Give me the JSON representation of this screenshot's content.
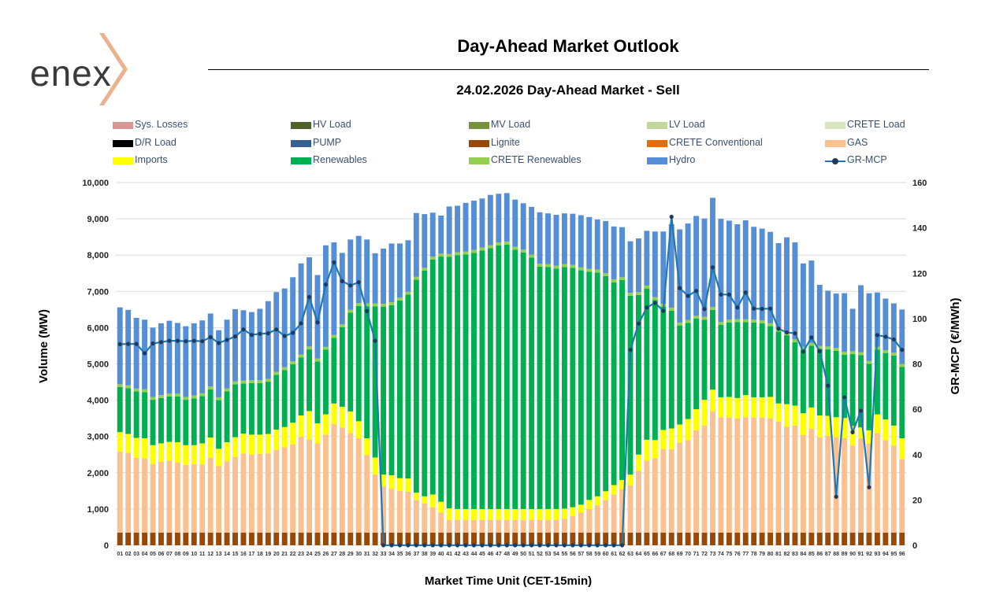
{
  "brand": {
    "name": "enex"
  },
  "header": {
    "page_title": "Day-Ahead Market Outlook",
    "chart_title": "24.02.2026  Day-Ahead Market - Sell"
  },
  "legend": [
    {
      "label": "Sys. Losses",
      "color": "#d99694",
      "kind": "bar"
    },
    {
      "label": "HV Load",
      "color": "#4f6228",
      "kind": "bar"
    },
    {
      "label": "MV Load",
      "color": "#77933c",
      "kind": "bar"
    },
    {
      "label": "LV Load",
      "color": "#c3d69b",
      "kind": "bar"
    },
    {
      "label": "CRETE Load",
      "color": "#d7e4bd",
      "kind": "bar"
    },
    {
      "label": "D/R Load",
      "color": "#000000",
      "kind": "bar"
    },
    {
      "label": "PUMP",
      "color": "#366092",
      "kind": "bar"
    },
    {
      "label": "Lignite",
      "color": "#984807",
      "kind": "bar"
    },
    {
      "label": "CRETE Conventional",
      "color": "#e46c0a",
      "kind": "bar"
    },
    {
      "label": "GAS",
      "color": "#fac090",
      "kind": "bar"
    },
    {
      "label": "Imports",
      "color": "#ffff00",
      "kind": "bar"
    },
    {
      "label": "Renewables",
      "color": "#00b050",
      "kind": "bar"
    },
    {
      "label": "CRETE Renewables",
      "color": "#92d050",
      "kind": "bar"
    },
    {
      "label": "Hydro",
      "color": "#558ed5",
      "kind": "bar"
    },
    {
      "label": "GR-MCP",
      "color": "#1f77b4",
      "kind": "line"
    }
  ],
  "chart_data": {
    "type": "bar",
    "stacked": true,
    "title": "24.02.2026  Day-Ahead Market - Sell",
    "xlabel": "Market Time Unit (CET-15min)",
    "ylabel": "Volume (MW)",
    "y2label": "GR-MCP (€/MWh)",
    "ylim": [
      0,
      10000
    ],
    "y2lim": [
      0,
      160
    ],
    "yticks": [
      "0",
      "1,000",
      "2,000",
      "3,000",
      "4,000",
      "5,000",
      "6,000",
      "7,000",
      "8,000",
      "9,000",
      "10,000"
    ],
    "y2ticks": [
      "0",
      "20",
      "40",
      "60",
      "80",
      "100",
      "120",
      "140",
      "160"
    ],
    "grid": true,
    "categories": [
      "01",
      "02",
      "03",
      "04",
      "05",
      "06",
      "07",
      "08",
      "09",
      "10",
      "11",
      "12",
      "13",
      "14",
      "15",
      "16",
      "17",
      "18",
      "19",
      "20",
      "21",
      "22",
      "23",
      "24",
      "25",
      "26",
      "27",
      "28",
      "29",
      "30",
      "31",
      "32",
      "33",
      "34",
      "35",
      "36",
      "37",
      "38",
      "39",
      "40",
      "41",
      "42",
      "43",
      "44",
      "45",
      "46",
      "47",
      "48",
      "49",
      "50",
      "51",
      "52",
      "53",
      "54",
      "55",
      "56",
      "57",
      "58",
      "59",
      "60",
      "61",
      "62",
      "63",
      "64",
      "65",
      "66",
      "67",
      "68",
      "69",
      "70",
      "71",
      "72",
      "73",
      "74",
      "75",
      "76",
      "77",
      "78",
      "79",
      "80",
      "81",
      "82",
      "83",
      "84",
      "85",
      "86",
      "87",
      "88",
      "89",
      "90",
      "91",
      "92",
      "93",
      "94",
      "95",
      "96"
    ],
    "series": [
      {
        "name": "Lignite",
        "color": "#984807",
        "values": [
          350,
          350,
          350,
          350,
          350,
          350,
          350,
          350,
          350,
          350,
          350,
          350,
          350,
          350,
          350,
          350,
          350,
          350,
          350,
          350,
          350,
          350,
          350,
          350,
          350,
          350,
          350,
          350,
          350,
          350,
          350,
          350,
          350,
          350,
          350,
          350,
          350,
          350,
          350,
          350,
          350,
          350,
          350,
          350,
          350,
          350,
          350,
          350,
          350,
          350,
          350,
          350,
          350,
          350,
          350,
          350,
          350,
          350,
          350,
          350,
          350,
          350,
          350,
          350,
          350,
          350,
          350,
          350,
          350,
          350,
          350,
          350,
          350,
          350,
          350,
          350,
          350,
          350,
          350,
          350,
          350,
          350,
          350,
          350,
          350,
          350,
          350,
          350,
          350,
          350,
          350,
          350,
          350,
          350,
          350,
          350
        ]
      },
      {
        "name": "GAS",
        "color": "#fac090",
        "values": [
          2230,
          2200,
          2060,
          2050,
          1890,
          1950,
          1980,
          1930,
          1870,
          1890,
          1880,
          2060,
          1830,
          1970,
          2080,
          2180,
          2150,
          2170,
          2180,
          2280,
          2350,
          2430,
          2640,
          2570,
          2460,
          2700,
          2990,
          2900,
          2740,
          2600,
          2140,
          1600,
          1270,
          1210,
          1150,
          1130,
          900,
          800,
          700,
          550,
          350,
          350,
          350,
          350,
          350,
          350,
          350,
          350,
          350,
          350,
          350,
          350,
          350,
          350,
          380,
          450,
          550,
          650,
          750,
          900,
          1050,
          1200,
          1300,
          1700,
          1980,
          2050,
          2300,
          2300,
          2480,
          2550,
          2820,
          2950,
          3340,
          3180,
          3170,
          3150,
          3180,
          3170,
          3170,
          3150,
          3060,
          2920,
          2950,
          2690,
          2860,
          2630,
          2670,
          2630,
          2600,
          2400,
          2600,
          2450,
          2740,
          2550,
          2400,
          2030
        ]
      },
      {
        "name": "Imports",
        "color": "#ffff00",
        "values": [
          540,
          520,
          550,
          550,
          520,
          510,
          520,
          560,
          540,
          520,
          580,
          560,
          480,
          520,
          550,
          550,
          550,
          530,
          540,
          560,
          560,
          600,
          590,
          780,
          550,
          560,
          570,
          570,
          600,
          470,
          460,
          470,
          330,
          370,
          350,
          360,
          200,
          200,
          350,
          300,
          320,
          300,
          300,
          300,
          300,
          300,
          300,
          300,
          300,
          300,
          300,
          300,
          300,
          300,
          280,
          250,
          220,
          250,
          250,
          240,
          260,
          250,
          300,
          450,
          580,
          500,
          530,
          570,
          500,
          580,
          580,
          710,
          600,
          550,
          570,
          560,
          610,
          560,
          560,
          590,
          500,
          620,
          550,
          600,
          590,
          600,
          550,
          550,
          560,
          540,
          300,
          370,
          520,
          570,
          550,
          570
        ]
      },
      {
        "name": "Renewables",
        "color": "#00b050",
        "values": [
          1240,
          1260,
          1280,
          1270,
          1250,
          1250,
          1250,
          1260,
          1250,
          1290,
          1300,
          1330,
          1340,
          1400,
          1460,
          1380,
          1420,
          1420,
          1440,
          1510,
          1570,
          1610,
          1600,
          1700,
          1710,
          1780,
          1810,
          2190,
          2720,
          3180,
          3640,
          4170,
          4630,
          4690,
          4900,
          5070,
          5870,
          6220,
          6480,
          6760,
          6930,
          7000,
          7020,
          7060,
          7130,
          7190,
          7270,
          7290,
          7150,
          7070,
          6930,
          6680,
          6670,
          6630,
          6660,
          6600,
          6460,
          6290,
          6170,
          5930,
          5590,
          5510,
          4930,
          4400,
          4170,
          3860,
          3400,
          3250,
          2730,
          2650,
          2500,
          2210,
          2200,
          2000,
          2050,
          2090,
          2010,
          2060,
          2040,
          1950,
          1980,
          1900,
          1750,
          1750,
          1700,
          1840,
          1830,
          1830,
          1740,
          1980,
          1990,
          1830,
          1780,
          1830,
          1930,
          1970
        ]
      },
      {
        "name": "CRETE Renewables",
        "color": "#92d050",
        "values": [
          80,
          80,
          80,
          80,
          80,
          80,
          80,
          80,
          80,
          80,
          80,
          80,
          80,
          80,
          80,
          80,
          80,
          80,
          80,
          80,
          80,
          80,
          80,
          80,
          80,
          80,
          80,
          80,
          80,
          80,
          80,
          80,
          80,
          80,
          80,
          80,
          80,
          80,
          80,
          80,
          80,
          80,
          80,
          80,
          80,
          80,
          80,
          80,
          80,
          80,
          80,
          80,
          80,
          80,
          80,
          80,
          80,
          80,
          80,
          80,
          80,
          80,
          80,
          80,
          80,
          80,
          80,
          80,
          80,
          80,
          80,
          80,
          80,
          80,
          80,
          80,
          80,
          80,
          80,
          80,
          80,
          80,
          80,
          80,
          80,
          80,
          80,
          80,
          80,
          80,
          80,
          80,
          80,
          80,
          80,
          80
        ]
      },
      {
        "name": "Hydro",
        "color": "#558ed5",
        "values": [
          2120,
          2080,
          1950,
          1920,
          1910,
          1980,
          2010,
          1950,
          1950,
          1990,
          2010,
          2010,
          1850,
          1900,
          1990,
          1940,
          1880,
          1970,
          2140,
          2200,
          2170,
          2320,
          2510,
          2460,
          2300,
          2800,
          2550,
          1970,
          1940,
          1850,
          1760,
          1380,
          1520,
          1620,
          1490,
          1420,
          1760,
          1480,
          1210,
          1050,
          1310,
          1280,
          1340,
          1360,
          1350,
          1390,
          1340,
          1340,
          1300,
          1280,
          1320,
          1420,
          1400,
          1400,
          1400,
          1410,
          1440,
          1430,
          1380,
          1440,
          1460,
          1380,
          1420,
          1480,
          1510,
          1810,
          1990,
          2300,
          2570,
          2660,
          2750,
          2710,
          3010,
          2840,
          2730,
          2620,
          2730,
          2560,
          2530,
          2520,
          2360,
          2620,
          2670,
          2300,
          2270,
          1680,
          1540,
          1500,
          1620,
          1170,
          1850,
          1870,
          1500,
          1420,
          1360,
          1500
        ]
      }
    ],
    "line": {
      "name": "GR-MCP",
      "axis": "right",
      "color": "#1f77b4",
      "values": [
        88.7,
        88.8,
        88.8,
        84.7,
        89.0,
        89.6,
        90.2,
        90.2,
        90.0,
        90.2,
        90.0,
        91.8,
        89.2,
        90.6,
        92.1,
        95.2,
        92.8,
        93.3,
        93.5,
        95.2,
        92.3,
        93.7,
        97.9,
        109.5,
        98.3,
        115.0,
        124.8,
        116.5,
        114.6,
        116.0,
        103.3,
        90.2,
        0,
        0,
        0,
        0,
        0,
        0,
        0,
        0,
        0,
        0,
        0,
        0,
        0,
        0,
        0,
        0,
        0,
        0,
        0,
        0,
        0,
        0,
        0,
        0,
        0,
        0,
        0,
        0,
        0,
        0,
        86.2,
        97.8,
        104.9,
        106.9,
        103.4,
        144.9,
        113.4,
        110.0,
        112.2,
        104.2,
        122.6,
        110.6,
        110.6,
        104.9,
        111.5,
        104.4,
        104.3,
        104.4,
        95.5,
        93.9,
        93.5,
        85.4,
        91.7,
        85.6,
        70.4,
        21.4,
        65.3,
        49.9,
        59.3,
        25.6,
        92.7,
        92.0,
        90.8,
        86.2
      ]
    }
  }
}
